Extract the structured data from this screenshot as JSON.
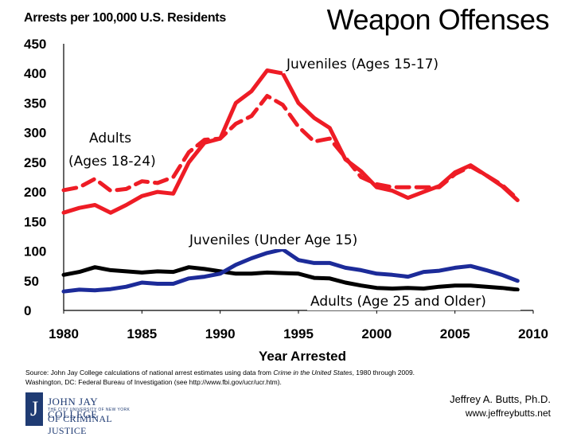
{
  "header": {
    "axis_caption": "Arrests per 100,000 U.S. Residents",
    "title": "Weapon Offenses"
  },
  "chart_data": {
    "type": "line",
    "title": "Weapon Offenses",
    "ylabel": "Arrests per 100,000 U.S. Residents",
    "xlabel": "Year Arrested",
    "xlim": [
      1980,
      2010
    ],
    "ylim": [
      0,
      450
    ],
    "xticks": [
      1980,
      1985,
      1990,
      1995,
      2000,
      2005,
      2010
    ],
    "yticks": [
      0,
      50,
      100,
      150,
      200,
      250,
      300,
      350,
      400,
      450
    ],
    "x": [
      1980,
      1981,
      1982,
      1983,
      1984,
      1985,
      1986,
      1987,
      1988,
      1989,
      1990,
      1991,
      1992,
      1993,
      1994,
      1995,
      1996,
      1997,
      1998,
      1999,
      2000,
      2001,
      2002,
      2003,
      2004,
      2005,
      2006,
      2007,
      2008,
      2009
    ],
    "series": [
      {
        "name": "Juveniles (Ages 15-17)",
        "color": "#ee1c25",
        "style": "solid",
        "values": [
          165,
          173,
          178,
          165,
          178,
          193,
          200,
          197,
          250,
          283,
          290,
          350,
          370,
          405,
          400,
          350,
          325,
          308,
          255,
          235,
          208,
          202,
          190,
          200,
          210,
          233,
          245,
          228,
          210,
          186
        ]
      },
      {
        "name": "Adults (Ages 18-24)",
        "color": "#ee1c25",
        "style": "dashed",
        "values": [
          203,
          208,
          222,
          202,
          205,
          218,
          215,
          225,
          267,
          288,
          290,
          315,
          328,
          362,
          347,
          310,
          285,
          290,
          258,
          225,
          213,
          208,
          208,
          208,
          208,
          230,
          243,
          228,
          212,
          188
        ]
      },
      {
        "name": "Juveniles (Under Age 15)",
        "color": "#1c2b99",
        "style": "solid",
        "values": [
          32,
          35,
          34,
          36,
          40,
          47,
          45,
          45,
          54,
          57,
          62,
          77,
          88,
          97,
          103,
          85,
          80,
          80,
          72,
          68,
          62,
          60,
          57,
          65,
          67,
          72,
          75,
          68,
          60,
          50
        ]
      },
      {
        "name": "Adults (Age 25 and Older)",
        "color": "#000000",
        "style": "solid",
        "values": [
          60,
          65,
          73,
          68,
          66,
          64,
          66,
          65,
          73,
          70,
          66,
          62,
          62,
          64,
          63,
          62,
          55,
          54,
          47,
          42,
          38,
          37,
          38,
          37,
          40,
          42,
          42,
          40,
          38,
          35
        ]
      }
    ],
    "annotations": [
      "Juveniles (Ages 15-17)",
      "Adults",
      "(Ages 18-24)",
      "Juveniles (Under Age 15)",
      "Adults (Age 25 and Older)"
    ],
    "grid": false
  },
  "footer": {
    "source_prefix": "Source: John Jay College calculations of national arrest estimates using data from ",
    "source_title": "Crime in the United States",
    "source_suffix": ", 1980 through 2009.",
    "source_line2": "Washington, DC: Federal Bureau of Investigation (see http://www.fbi.gov/ucr/ucr.htm).",
    "author": "Jeffrey A. Butts, Ph.D.",
    "website": "www.jeffreybutts.net",
    "logo_line1": "JOHN JAY COLLEGE",
    "logo_line2": "THE CITY UNIVERSITY OF NEW YORK",
    "logo_line3": "OF CRIMINAL JUSTICE",
    "logo_mark": "J"
  }
}
